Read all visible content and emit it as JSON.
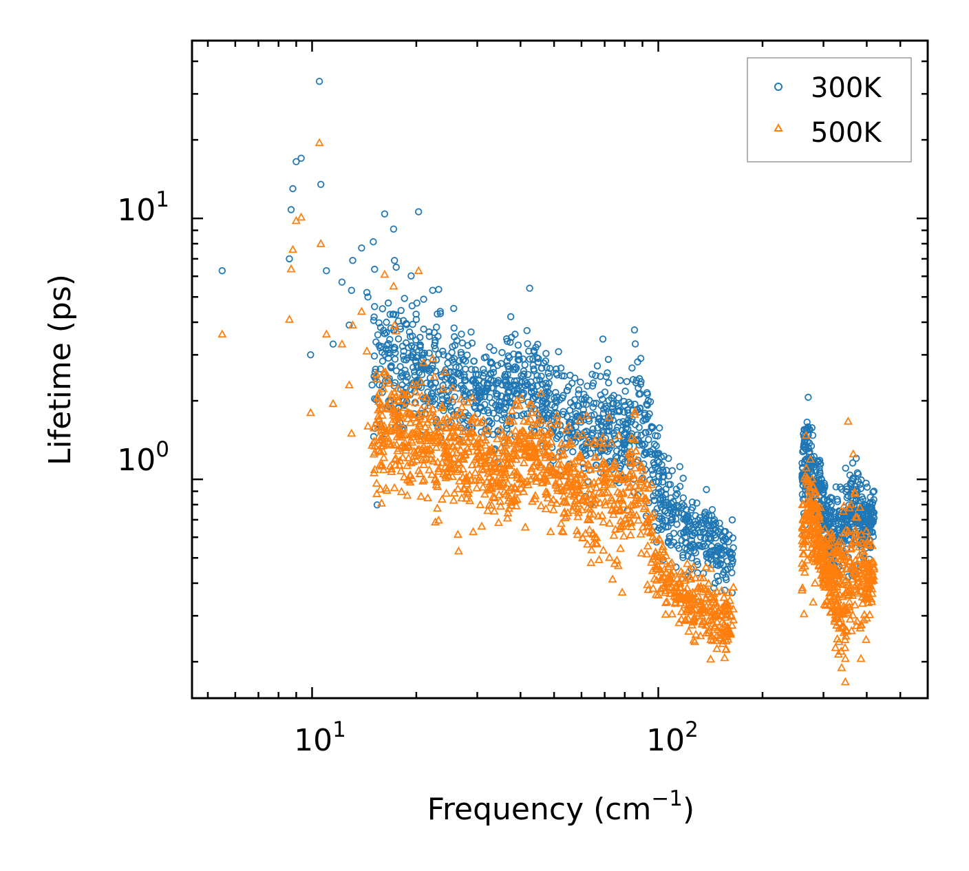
{
  "chart_data": {
    "type": "scatter",
    "title": "",
    "xlabel": "Frequency (cm",
    "xlabel_sup": "−1",
    "xlabel_end": ")",
    "ylabel": "Lifetime (ps)",
    "xscale": "log",
    "yscale": "log",
    "xlim": [
      4.5,
      600
    ],
    "ylim": [
      0.145,
      48
    ],
    "x_ticks": [
      {
        "value": 10,
        "base": "10",
        "exp": "1"
      },
      {
        "value": 100,
        "base": "10",
        "exp": "2"
      }
    ],
    "y_ticks": [
      {
        "value": 1,
        "base": "10",
        "exp": "0"
      },
      {
        "value": 10,
        "base": "10",
        "exp": "1"
      }
    ],
    "legend_position": "top-right",
    "series": [
      {
        "name": "300K",
        "color": "#1f77b4",
        "marker": "circle-open",
        "outliers": [
          [
            5.5,
            6.3
          ],
          [
            8.6,
            7.0
          ],
          [
            8.7,
            10.8
          ],
          [
            8.8,
            13.0
          ],
          [
            9.0,
            16.5
          ],
          [
            9.3,
            17.0
          ],
          [
            9.9,
            3.0
          ],
          [
            10.5,
            33.5
          ],
          [
            10.6,
            13.5
          ],
          [
            11.0,
            6.3
          ],
          [
            11.5,
            3.3
          ],
          [
            12.2,
            5.7
          ],
          [
            12.8,
            3.9
          ],
          [
            13.0,
            5.3
          ],
          [
            13.1,
            6.9
          ],
          [
            13.9,
            7.7
          ],
          [
            14.4,
            5.2
          ],
          [
            14.5,
            5.0
          ],
          [
            14.9,
            2.3
          ],
          [
            16.2,
            10.4
          ],
          [
            16.4,
            4.0
          ],
          [
            17.2,
            9.1
          ],
          [
            17.3,
            6.9
          ],
          [
            17.5,
            6.5
          ],
          [
            19.0,
            3.2
          ],
          [
            20.0,
            4.1
          ],
          [
            20.3,
            10.6
          ],
          [
            20.5,
            3.5
          ],
          [
            21.0,
            4.9
          ],
          [
            22.3,
            5.3
          ],
          [
            23.0,
            4.3
          ],
          [
            25.7,
            3.8
          ],
          [
            26.2,
            3.4
          ],
          [
            27.0,
            3.6
          ],
          [
            37.5,
            4.2
          ],
          [
            42.5,
            5.4
          ]
        ],
        "trend": [
          [
            15,
            2.9,
            0.3
          ],
          [
            17,
            2.7,
            0.25
          ],
          [
            19,
            2.6,
            0.22
          ],
          [
            22,
            2.45,
            0.2
          ],
          [
            26,
            2.3,
            0.2
          ],
          [
            30,
            2.1,
            0.18
          ],
          [
            35,
            1.95,
            0.17
          ],
          [
            40,
            2.3,
            0.18
          ],
          [
            45,
            2.2,
            0.18
          ],
          [
            50,
            1.85,
            0.17
          ],
          [
            55,
            1.7,
            0.17
          ],
          [
            60,
            1.6,
            0.16
          ],
          [
            65,
            1.45,
            0.17
          ],
          [
            70,
            1.9,
            0.22
          ],
          [
            75,
            1.5,
            0.18
          ],
          [
            80,
            1.4,
            0.17
          ],
          [
            85,
            1.9,
            0.25
          ],
          [
            90,
            1.5,
            0.22
          ],
          [
            95,
            1.25,
            0.2
          ],
          [
            100,
            0.95,
            0.18
          ],
          [
            110,
            0.72,
            0.15
          ],
          [
            120,
            0.66,
            0.13
          ],
          [
            135,
            0.6,
            0.12
          ],
          [
            150,
            0.55,
            0.12
          ],
          [
            165,
            0.5,
            0.12
          ],
          [
            260,
            1.05,
            0.12
          ],
          [
            270,
            1.25,
            0.18
          ],
          [
            285,
            0.95,
            0.15
          ],
          [
            300,
            0.75,
            0.12
          ],
          [
            320,
            0.6,
            0.15
          ],
          [
            345,
            0.7,
            0.12
          ],
          [
            370,
            0.8,
            0.2
          ],
          [
            390,
            0.65,
            0.12
          ],
          [
            420,
            0.7,
            0.1
          ]
        ]
      },
      {
        "name": "500K",
        "color": "#ff7f0e",
        "marker": "triangle-open",
        "outliers": [
          [
            5.5,
            3.6
          ],
          [
            8.6,
            4.1
          ],
          [
            8.7,
            6.4
          ],
          [
            8.8,
            7.6
          ],
          [
            9.0,
            9.8
          ],
          [
            9.3,
            10.1
          ],
          [
            9.9,
            1.8
          ],
          [
            10.5,
            19.5
          ],
          [
            10.6,
            8.0
          ],
          [
            11.0,
            3.6
          ],
          [
            11.5,
            1.95
          ],
          [
            12.2,
            3.3
          ],
          [
            12.8,
            2.3
          ],
          [
            13.0,
            1.5
          ],
          [
            13.1,
            3.9
          ],
          [
            13.9,
            4.4
          ],
          [
            14.4,
            3.1
          ],
          [
            14.5,
            1.6
          ],
          [
            14.9,
            1.35
          ],
          [
            16.2,
            6.1
          ],
          [
            16.4,
            2.4
          ],
          [
            17.2,
            5.5
          ],
          [
            17.3,
            3.9
          ],
          [
            17.5,
            3.7
          ],
          [
            19.0,
            1.8
          ],
          [
            20.0,
            2.3
          ],
          [
            20.3,
            6.3
          ],
          [
            20.5,
            1.05
          ],
          [
            21.0,
            2.8
          ],
          [
            22.3,
            2.9
          ]
        ],
        "trend": [
          [
            15,
            1.6,
            0.25
          ],
          [
            17,
            1.5,
            0.22
          ],
          [
            19,
            1.45,
            0.2
          ],
          [
            22,
            1.35,
            0.2
          ],
          [
            26,
            1.25,
            0.2
          ],
          [
            30,
            1.15,
            0.18
          ],
          [
            35,
            1.05,
            0.17
          ],
          [
            40,
            1.3,
            0.18
          ],
          [
            45,
            1.25,
            0.17
          ],
          [
            50,
            1.05,
            0.17
          ],
          [
            55,
            0.95,
            0.17
          ],
          [
            60,
            0.88,
            0.16
          ],
          [
            65,
            0.78,
            0.17
          ],
          [
            70,
            1.05,
            0.22
          ],
          [
            75,
            0.8,
            0.18
          ],
          [
            80,
            0.75,
            0.17
          ],
          [
            85,
            1.05,
            0.25
          ],
          [
            90,
            0.8,
            0.22
          ],
          [
            95,
            0.62,
            0.2
          ],
          [
            100,
            0.48,
            0.16
          ],
          [
            110,
            0.38,
            0.12
          ],
          [
            120,
            0.35,
            0.12
          ],
          [
            135,
            0.32,
            0.12
          ],
          [
            150,
            0.29,
            0.12
          ],
          [
            165,
            0.28,
            0.12
          ],
          [
            260,
            0.55,
            0.25
          ],
          [
            270,
            0.8,
            0.25
          ],
          [
            285,
            0.65,
            0.15
          ],
          [
            300,
            0.45,
            0.12
          ],
          [
            320,
            0.4,
            0.15
          ],
          [
            345,
            0.35,
            0.3
          ],
          [
            370,
            0.5,
            0.3
          ],
          [
            390,
            0.4,
            0.15
          ],
          [
            420,
            0.45,
            0.1
          ]
        ]
      }
    ]
  }
}
